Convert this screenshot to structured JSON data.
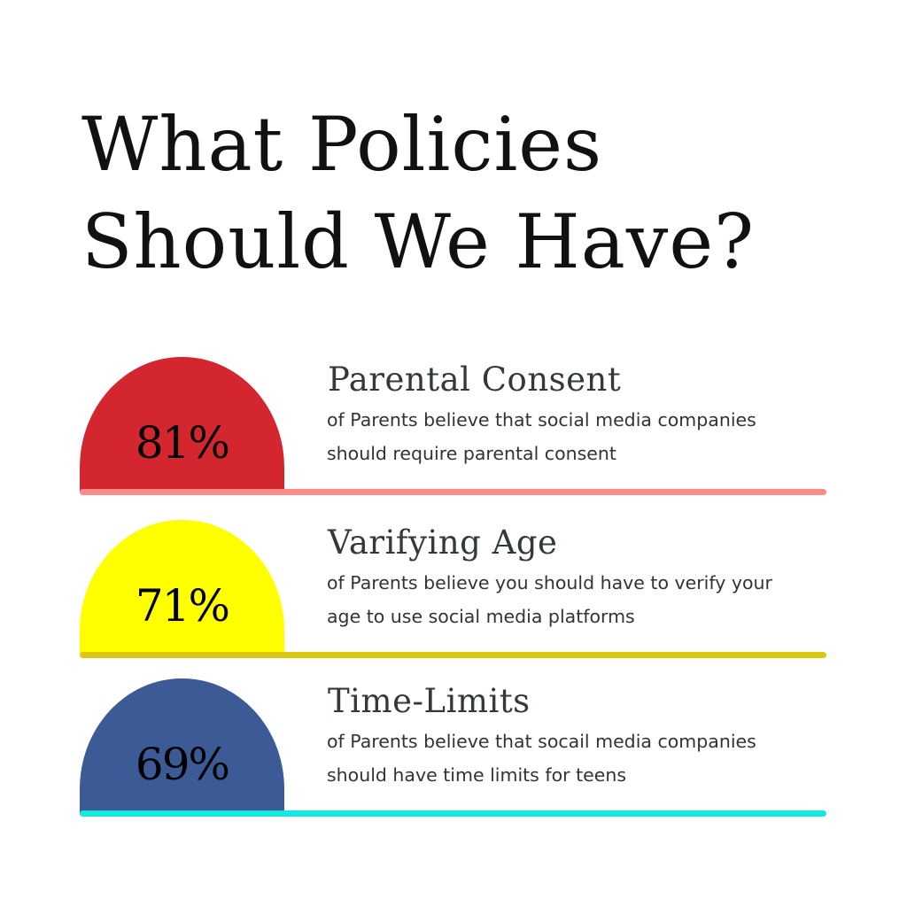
{
  "title": {
    "line1": "What Policies",
    "line2": "Should We Have?"
  },
  "items": [
    {
      "percent": "81%",
      "value": 81,
      "heading": "Parental Consent",
      "desc_line1": "of Parents believe that social media companies",
      "desc_line2": "should require parental consent",
      "dome_color": "#d3262f",
      "bar_color": "#ff8a8a"
    },
    {
      "percent": "71%",
      "value": 71,
      "heading": "Varifying Age",
      "desc_line1": "of Parents believe you should have to verify your",
      "desc_line2": "age to use social media platforms",
      "dome_color": "#ffff00",
      "bar_color": "#dcc812"
    },
    {
      "percent": "69%",
      "value": 69,
      "heading": "Time-Limits",
      "desc_line1": "of Parents believe that socail media companies",
      "desc_line2": "should have time limits for teens",
      "dome_color": "#3c5a96",
      "bar_color": "#15e8e0"
    }
  ]
}
